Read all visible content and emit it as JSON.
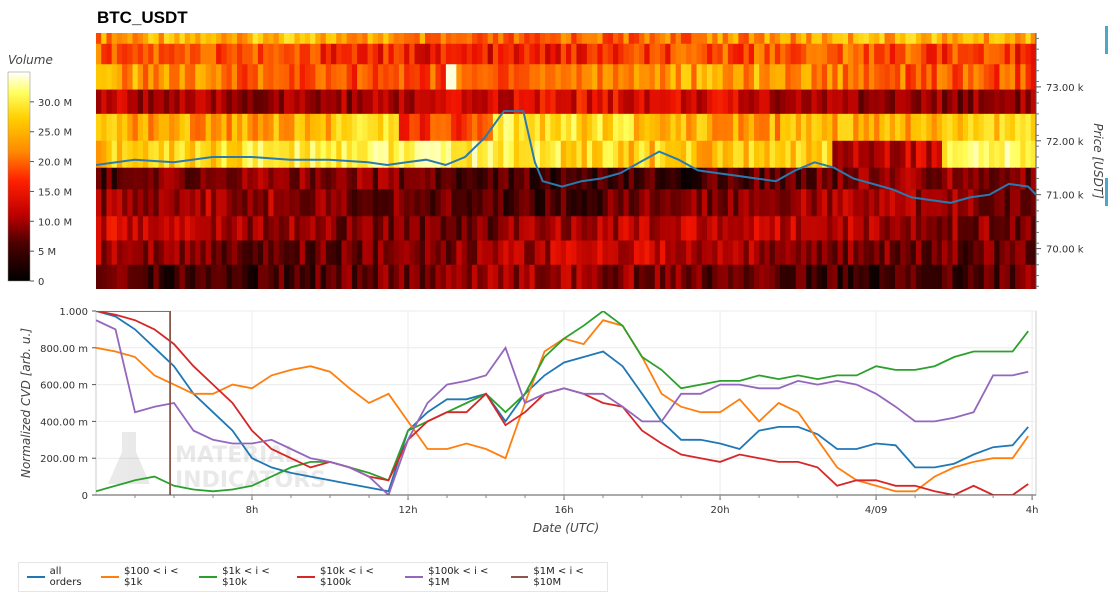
{
  "title": "BTC_USDT",
  "colorbar": {
    "label": "Volume",
    "ticks": [
      "0",
      "5 M",
      "10.0 M",
      "15.0 M",
      "20.0 M",
      "25.0 M",
      "30.0 M"
    ],
    "tick_values": [
      0,
      5,
      10,
      15,
      20,
      25,
      30
    ],
    "range": [
      0,
      35
    ]
  },
  "chart_data": [
    {
      "type": "heatmap",
      "name": "orderbook-volume-heatmap",
      "ylabel": "Price [USDT]",
      "yticks": [
        "70.00 k",
        "71.00 k",
        "72.00 k",
        "73.00 k"
      ],
      "ytick_values": [
        70000,
        71000,
        72000,
        73000
      ],
      "ylim": [
        69250,
        74000
      ],
      "price_line": {
        "color": "#2a7ab0",
        "x_hours": [
          3,
          4,
          5,
          6,
          7,
          8,
          9,
          10,
          10.5,
          11,
          11.5,
          12,
          12.5,
          13,
          13.5,
          14,
          14.3,
          14.5,
          15,
          15.5,
          16,
          16.5,
          17,
          17.5,
          18,
          18.5,
          19,
          19.5,
          20,
          20.5,
          21,
          21.5,
          22,
          22.5,
          23,
          23.5,
          24,
          24.5,
          25,
          25.5,
          26,
          26.5,
          27,
          27.2
        ],
        "y": [
          71550,
          71650,
          71600,
          71700,
          71700,
          71650,
          71650,
          71600,
          71550,
          71600,
          71650,
          71550,
          71700,
          72050,
          72550,
          72550,
          71600,
          71250,
          71150,
          71250,
          71300,
          71400,
          71600,
          71800,
          71650,
          71450,
          71400,
          71350,
          71300,
          71250,
          71450,
          71600,
          71500,
          71300,
          71200,
          71100,
          70950,
          70900,
          70850,
          70950,
          71000,
          71200,
          71150,
          71000
        ]
      }
    },
    {
      "type": "line",
      "name": "normalized-cvd",
      "xlabel": "Date (UTC)",
      "ylabel": "Normalized CVD [arb. u.]",
      "xticks": [
        "8h",
        "12h",
        "16h",
        "20h",
        "4/09",
        "4h"
      ],
      "xtick_hours": [
        8,
        12,
        16,
        20,
        24,
        28
      ],
      "xlim": [
        4,
        28.1
      ],
      "yticks": [
        "0",
        "200.00 m",
        "400.00 m",
        "600.00 m",
        "800.00 m",
        "1.000"
      ],
      "ytick_values": [
        0,
        0.2,
        0.4,
        0.6,
        0.8,
        1.0
      ],
      "ylim": [
        0,
        1.0
      ],
      "series": [
        {
          "name": "all orders",
          "color": "#1f77b4",
          "x": [
            4,
            4.5,
            5,
            5.5,
            6,
            6.5,
            7,
            7.5,
            8,
            8.5,
            9,
            9.5,
            10,
            10.5,
            11,
            11.5,
            12,
            12.5,
            13,
            13.5,
            14,
            14.5,
            15,
            15.5,
            16,
            16.5,
            17,
            17.5,
            18,
            18.5,
            19,
            19.5,
            20,
            20.5,
            21,
            21.5,
            22,
            22.5,
            23,
            23.5,
            24,
            24.5,
            25,
            25.5,
            26,
            26.5,
            27,
            27.5,
            27.9
          ],
          "y": [
            1.0,
            0.97,
            0.9,
            0.8,
            0.7,
            0.55,
            0.45,
            0.35,
            0.2,
            0.15,
            0.12,
            0.1,
            0.08,
            0.06,
            0.04,
            0.02,
            0.35,
            0.45,
            0.52,
            0.52,
            0.55,
            0.4,
            0.55,
            0.65,
            0.72,
            0.75,
            0.78,
            0.7,
            0.55,
            0.4,
            0.3,
            0.3,
            0.28,
            0.25,
            0.35,
            0.37,
            0.37,
            0.33,
            0.25,
            0.25,
            0.28,
            0.27,
            0.15,
            0.15,
            0.17,
            0.22,
            0.26,
            0.27,
            0.37
          ]
        },
        {
          "name": "$100 < i < $1k",
          "color": "#ff7f0e",
          "x": [
            4,
            4.5,
            5,
            5.5,
            6,
            6.5,
            7,
            7.5,
            8,
            8.5,
            9,
            9.5,
            10,
            10.5,
            11,
            11.5,
            12,
            12.5,
            13,
            13.5,
            14,
            14.5,
            15,
            15.5,
            16,
            16.5,
            17,
            17.5,
            18,
            18.5,
            19,
            19.5,
            20,
            20.5,
            21,
            21.5,
            22,
            22.5,
            23,
            23.5,
            24,
            24.5,
            25,
            25.5,
            26,
            26.5,
            27,
            27.5,
            27.9
          ],
          "y": [
            0.8,
            0.78,
            0.75,
            0.65,
            0.6,
            0.55,
            0.55,
            0.6,
            0.58,
            0.65,
            0.68,
            0.7,
            0.67,
            0.58,
            0.5,
            0.55,
            0.4,
            0.25,
            0.25,
            0.28,
            0.25,
            0.2,
            0.5,
            0.78,
            0.85,
            0.82,
            0.95,
            0.92,
            0.75,
            0.55,
            0.48,
            0.45,
            0.45,
            0.52,
            0.4,
            0.5,
            0.45,
            0.3,
            0.15,
            0.08,
            0.05,
            0.02,
            0.02,
            0.1,
            0.15,
            0.18,
            0.2,
            0.2,
            0.32
          ]
        },
        {
          "name": "$1k < i < $10k",
          "color": "#2ca02c",
          "x": [
            4,
            4.5,
            5,
            5.5,
            6,
            6.5,
            7,
            7.5,
            8,
            8.5,
            9,
            9.5,
            10,
            10.5,
            11,
            11.5,
            12,
            12.5,
            13,
            13.5,
            14,
            14.5,
            15,
            15.5,
            16,
            16.5,
            17,
            17.5,
            18,
            18.5,
            19,
            19.5,
            20,
            20.5,
            21,
            21.5,
            22,
            22.5,
            23,
            23.5,
            24,
            24.5,
            25,
            25.5,
            26,
            26.5,
            27,
            27.5,
            27.9
          ],
          "y": [
            0.02,
            0.05,
            0.08,
            0.1,
            0.05,
            0.03,
            0.02,
            0.03,
            0.05,
            0.1,
            0.15,
            0.18,
            0.18,
            0.15,
            0.12,
            0.08,
            0.35,
            0.4,
            0.45,
            0.5,
            0.55,
            0.45,
            0.55,
            0.75,
            0.85,
            0.92,
            1.0,
            0.92,
            0.75,
            0.68,
            0.58,
            0.6,
            0.62,
            0.62,
            0.65,
            0.63,
            0.65,
            0.63,
            0.65,
            0.65,
            0.7,
            0.68,
            0.68,
            0.7,
            0.75,
            0.78,
            0.78,
            0.78,
            0.89
          ]
        },
        {
          "name": "$10k < i < $100k",
          "color": "#d62728",
          "x": [
            4,
            4.5,
            5,
            5.5,
            6,
            6.5,
            7,
            7.5,
            8,
            8.5,
            9,
            9.5,
            10,
            10.5,
            11,
            11.5,
            12,
            12.5,
            13,
            13.5,
            14,
            14.5,
            15,
            15.5,
            16,
            16.5,
            17,
            17.5,
            18,
            18.5,
            19,
            19.5,
            20,
            20.5,
            21,
            21.5,
            22,
            22.5,
            23,
            23.5,
            24,
            24.5,
            25,
            25.5,
            26,
            26.5,
            27,
            27.5,
            27.9
          ],
          "y": [
            1.0,
            0.98,
            0.95,
            0.9,
            0.82,
            0.7,
            0.6,
            0.5,
            0.35,
            0.25,
            0.2,
            0.15,
            0.18,
            0.15,
            0.1,
            0.08,
            0.3,
            0.4,
            0.45,
            0.45,
            0.55,
            0.38,
            0.45,
            0.55,
            0.58,
            0.55,
            0.5,
            0.48,
            0.35,
            0.28,
            0.22,
            0.2,
            0.18,
            0.22,
            0.2,
            0.18,
            0.18,
            0.15,
            0.05,
            0.08,
            0.08,
            0.05,
            0.05,
            0.02,
            0.0,
            0.05,
            0.0,
            0.0,
            0.06
          ]
        },
        {
          "name": "$100k < i < $1M",
          "color": "#9467bd",
          "x": [
            4,
            4.5,
            5,
            5.5,
            6,
            6.5,
            7,
            7.5,
            8,
            8.5,
            9,
            9.5,
            10,
            10.5,
            11,
            11.5,
            12,
            12.5,
            13,
            13.5,
            14,
            14.5,
            15,
            15.5,
            16,
            16.5,
            17,
            17.5,
            18,
            18.5,
            19,
            19.5,
            20,
            20.5,
            21,
            21.5,
            22,
            22.5,
            23,
            23.5,
            24,
            24.5,
            25,
            25.5,
            26,
            26.5,
            27,
            27.5,
            27.9
          ],
          "y": [
            0.95,
            0.9,
            0.45,
            0.48,
            0.5,
            0.35,
            0.3,
            0.28,
            0.28,
            0.3,
            0.25,
            0.2,
            0.18,
            0.15,
            0.1,
            0.0,
            0.3,
            0.5,
            0.6,
            0.62,
            0.65,
            0.8,
            0.5,
            0.55,
            0.58,
            0.55,
            0.55,
            0.48,
            0.4,
            0.4,
            0.55,
            0.55,
            0.6,
            0.6,
            0.58,
            0.58,
            0.62,
            0.6,
            0.62,
            0.6,
            0.55,
            0.48,
            0.4,
            0.4,
            0.42,
            0.45,
            0.65,
            0.65,
            0.67
          ]
        },
        {
          "name": "$1M < i < $10M",
          "color": "#8c564b",
          "x": [
            4,
            4.8,
            5.5,
            5.6,
            5.6,
            5.9,
            5.9
          ],
          "y": [
            1.0,
            1.0,
            1.0,
            1.0,
            1.0,
            1.0,
            0.0
          ]
        }
      ]
    }
  ]
}
